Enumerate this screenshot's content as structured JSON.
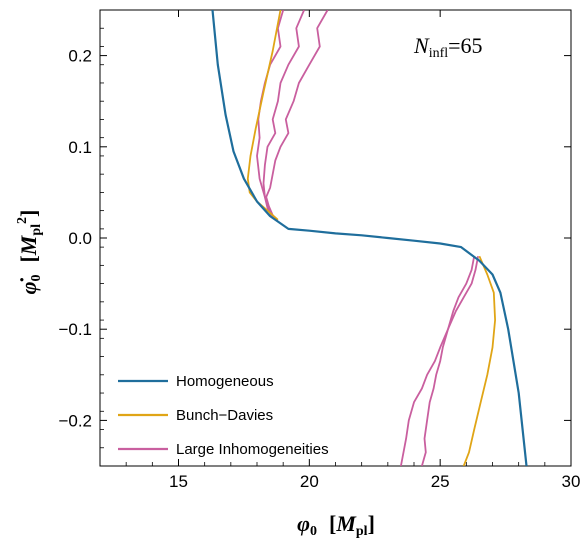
{
  "chart_data": {
    "type": "line",
    "annotation": {
      "symbol": "N",
      "subscript": "infl",
      "text": "=65"
    },
    "xlabel": {
      "symbol": "φ",
      "subscript": "0",
      "unit_open": "[",
      "unit": "M",
      "unit_sub": "pl",
      "unit_close": "]"
    },
    "ylabel": {
      "symbol": "φ̇",
      "subscript": "0",
      "unit_open": "[",
      "unit": "M",
      "unit_sub": "pl",
      "unit_sup": "2",
      "unit_close": "]"
    },
    "xlim": [
      12,
      30
    ],
    "ylim": [
      -0.25,
      0.25
    ],
    "x_ticks": [
      15,
      20,
      25,
      30
    ],
    "x_tick_labels": [
      "15",
      "20",
      "25",
      "30"
    ],
    "y_ticks": [
      0.2,
      0.1,
      0.0,
      -0.1,
      -0.2
    ],
    "y_tick_labels": [
      "0.2",
      "0.1",
      "0.0",
      "−0.1",
      "−0.2"
    ],
    "legend_position": "bottom-left",
    "colors": {
      "homogeneous": "#1f6e9c",
      "bunch_davies": "#e0a516",
      "large_inhomogeneities": "#c95f9f"
    },
    "series": [
      {
        "name": "Homogeneous",
        "color": "#1f6e9c",
        "x": [
          16.3,
          16.5,
          16.8,
          17.1,
          17.5,
          18.0,
          18.5,
          19.2,
          20,
          21,
          22,
          23,
          24,
          25,
          25.8,
          26.5,
          27.0,
          27.3,
          27.6,
          28.0,
          28.3
        ],
        "y": [
          0.25,
          0.19,
          0.135,
          0.095,
          0.065,
          0.04,
          0.024,
          0.01,
          0.008,
          0.005,
          0.003,
          0.0,
          -0.003,
          -0.006,
          -0.01,
          -0.025,
          -0.04,
          -0.06,
          -0.1,
          -0.17,
          -0.25
        ]
      },
      {
        "name": "Bunch–Davies",
        "color": "#e0a516",
        "x": [
          18.9,
          18.6,
          18.25,
          17.95,
          17.75,
          17.65,
          17.72,
          18.0,
          18.4,
          18.8
        ],
        "y": [
          0.25,
          0.205,
          0.16,
          0.12,
          0.09,
          0.065,
          0.05,
          0.04,
          0.03,
          0.02
        ]
      },
      {
        "name": "Bunch–Davies",
        "color": "#e0a516",
        "x": [
          26.5,
          26.8,
          27.05,
          27.1,
          27.0,
          26.8,
          26.55,
          26.3,
          26.1,
          25.9
        ],
        "y": [
          -0.02,
          -0.04,
          -0.06,
          -0.09,
          -0.12,
          -0.15,
          -0.18,
          -0.21,
          -0.235,
          -0.25
        ]
      },
      {
        "name": "Large Inhomogeneities",
        "color": "#c95f9f",
        "x": [
          20.7,
          20.3,
          20.4,
          20.0,
          19.6,
          19.4,
          19.1,
          19.2,
          18.9,
          18.7,
          18.6,
          18.5,
          18.35,
          18.45,
          18.6,
          18.8
        ],
        "y": [
          0.25,
          0.23,
          0.21,
          0.19,
          0.17,
          0.15,
          0.13,
          0.115,
          0.1,
          0.085,
          0.07,
          0.055,
          0.045,
          0.035,
          0.025,
          0.018
        ]
      },
      {
        "name": "Large Inhomogeneities",
        "color": "#c95f9f",
        "x": [
          19.8,
          19.5,
          19.6,
          19.2,
          18.9,
          18.8,
          18.6,
          18.7,
          18.4,
          18.3,
          18.25,
          18.3,
          18.4,
          18.6
        ],
        "y": [
          0.25,
          0.23,
          0.21,
          0.19,
          0.17,
          0.15,
          0.13,
          0.115,
          0.1,
          0.08,
          0.06,
          0.045,
          0.033,
          0.022
        ]
      },
      {
        "name": "Large Inhomogeneities",
        "color": "#c95f9f",
        "x": [
          19.0,
          18.8,
          18.9,
          18.5,
          18.3,
          18.15,
          18.05,
          18.1,
          18.0,
          18.1,
          18.3,
          18.5
        ],
        "y": [
          0.25,
          0.23,
          0.21,
          0.19,
          0.17,
          0.15,
          0.13,
          0.11,
          0.09,
          0.065,
          0.045,
          0.028
        ]
      },
      {
        "name": "Large Inhomogeneities",
        "color": "#c95f9f",
        "x": [
          26.3,
          26.2,
          26.0,
          25.7,
          25.5,
          25.3,
          25.1,
          25.0,
          24.85,
          24.75,
          24.6,
          24.5,
          24.4,
          24.45,
          24.3
        ],
        "y": [
          -0.02,
          -0.035,
          -0.05,
          -0.065,
          -0.08,
          -0.1,
          -0.12,
          -0.135,
          -0.15,
          -0.165,
          -0.18,
          -0.2,
          -0.22,
          -0.235,
          -0.25
        ]
      },
      {
        "name": "Large Inhomogeneities",
        "color": "#c95f9f",
        "x": [
          26.45,
          26.35,
          26.2,
          25.9,
          25.6,
          25.3,
          25.0,
          24.8,
          24.5,
          24.3,
          24.0,
          23.8,
          23.7,
          23.6,
          23.5
        ],
        "y": [
          -0.02,
          -0.035,
          -0.05,
          -0.065,
          -0.08,
          -0.1,
          -0.12,
          -0.135,
          -0.15,
          -0.165,
          -0.18,
          -0.2,
          -0.22,
          -0.235,
          -0.25
        ]
      },
      {
        "name": "Large Inhomogeneities",
        "color": "#c95f9f",
        "x": [
          26.6,
          26.5,
          26.3,
          26.0,
          25.6,
          25.1,
          24.6,
          24.3,
          24.0,
          23.7,
          23.4,
          23.2,
          23.1,
          23.0,
          22.9
        ],
        "y": [
          -0.02,
          -0.035,
          -0.05,
          -0.065,
          -0.08,
          -0.1,
          -0.12,
          -0.135,
          -0.15,
          -0.165,
          -0.18,
          -0.2,
          -0.22,
          -0.235,
          -0.25
        ]
      }
    ],
    "legend": [
      {
        "label": "Homogeneous",
        "color": "#1f6e9c"
      },
      {
        "label": "Bunch−Davies",
        "color": "#e0a516"
      },
      {
        "label": "Large Inhomogeneities",
        "color": "#c95f9f"
      }
    ]
  }
}
